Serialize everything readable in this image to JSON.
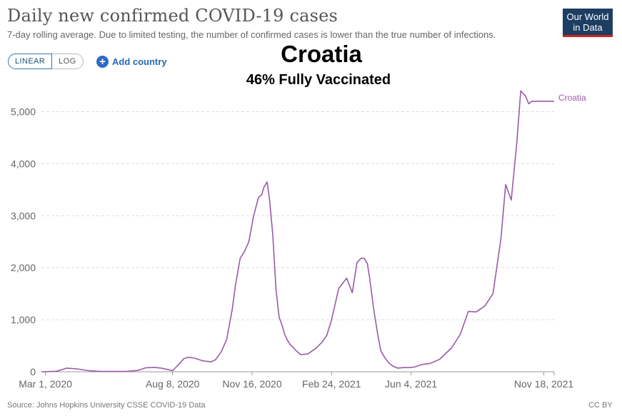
{
  "header": {
    "title": "Daily new confirmed COVID-19 cases",
    "subtitle": "7-day rolling average. Due to limited testing, the number of confirmed cases is lower than the true number of infections."
  },
  "logo": {
    "line1": "Our World",
    "line2": "in Data"
  },
  "controls": {
    "linear_label": "LINEAR",
    "log_label": "LOG",
    "add_country_label": "Add country",
    "add_icon": "plus-circle-icon"
  },
  "overlay": {
    "title": "Croatia",
    "subtitle": "46% Fully Vaccinated"
  },
  "footer": {
    "source": "Source: Johns Hopkins University CSSE COVID-19 Data",
    "license": "CC BY"
  },
  "colors": {
    "series": "#9a5aa8",
    "grid": "#dddddd",
    "logo_bg": "#1d3d63",
    "logo_accent": "#ce261e",
    "link": "#2668b5"
  },
  "chart_data": {
    "type": "line",
    "x_axis_type": "date",
    "ylim": [
      0,
      5500
    ],
    "y_ticks": [
      0,
      1000,
      2000,
      3000,
      4000,
      5000
    ],
    "y_tick_labels": [
      "0",
      "1,000",
      "2,000",
      "3,000",
      "4,000",
      "5,000"
    ],
    "x_ticks": [
      "2020-03-01",
      "2020-08-08",
      "2020-11-16",
      "2021-02-24",
      "2021-06-04",
      "2021-11-18"
    ],
    "x_tick_labels": [
      "Mar 1, 2020",
      "Aug 8, 2020",
      "Nov 16, 2020",
      "Feb 24, 2021",
      "Jun 4, 2021",
      "Nov 18, 2021"
    ],
    "x_range": [
      "2020-02-25",
      "2021-12-01"
    ],
    "grid": "horizontal-dashed",
    "series": [
      {
        "name": "Croatia",
        "x": [
          "2020-02-25",
          "2020-03-15",
          "2020-03-28",
          "2020-04-10",
          "2020-04-25",
          "2020-05-10",
          "2020-05-25",
          "2020-06-10",
          "2020-06-25",
          "2020-07-05",
          "2020-07-15",
          "2020-07-25",
          "2020-08-01",
          "2020-08-08",
          "2020-08-15",
          "2020-08-22",
          "2020-08-28",
          "2020-09-05",
          "2020-09-15",
          "2020-09-25",
          "2020-10-01",
          "2020-10-08",
          "2020-10-15",
          "2020-10-22",
          "2020-10-26",
          "2020-11-01",
          "2020-11-06",
          "2020-11-12",
          "2020-11-18",
          "2020-11-24",
          "2020-11-28",
          "2020-12-01",
          "2020-12-05",
          "2020-12-08",
          "2020-12-12",
          "2020-12-16",
          "2020-12-20",
          "2020-12-24",
          "2020-12-27",
          "2020-12-30",
          "2021-01-03",
          "2021-01-06",
          "2021-01-10",
          "2021-01-16",
          "2021-01-25",
          "2021-02-05",
          "2021-02-12",
          "2021-02-18",
          "2021-02-24",
          "2021-03-05",
          "2021-03-15",
          "2021-03-22",
          "2021-03-28",
          "2021-04-02",
          "2021-04-06",
          "2021-04-10",
          "2021-04-13",
          "2021-04-18",
          "2021-04-23",
          "2021-04-27",
          "2021-05-02",
          "2021-05-07",
          "2021-05-12",
          "2021-05-18",
          "2021-05-25",
          "2021-06-01",
          "2021-06-08",
          "2021-06-18",
          "2021-06-28",
          "2021-07-10",
          "2021-07-25",
          "2021-08-05",
          "2021-08-15",
          "2021-08-25",
          "2021-09-05",
          "2021-09-15",
          "2021-09-25",
          "2021-10-01",
          "2021-10-08",
          "2021-10-15",
          "2021-10-20",
          "2021-10-26",
          "2021-10-30",
          "2021-11-03",
          "2021-11-07",
          "2021-11-10",
          "2021-11-12",
          "2021-11-15",
          "2021-11-18",
          "2021-11-20",
          "2021-11-22",
          "2021-11-24",
          "2021-11-27",
          "2021-11-29",
          "2021-12-01"
        ],
        "values": [
          0,
          10,
          70,
          55,
          20,
          5,
          5,
          5,
          25,
          75,
          85,
          70,
          45,
          20,
          130,
          250,
          280,
          260,
          210,
          190,
          230,
          380,
          620,
          1200,
          1650,
          2180,
          2300,
          2500,
          3000,
          3350,
          3400,
          3550,
          3650,
          3300,
          2650,
          1600,
          1050,
          880,
          720,
          620,
          520,
          480,
          410,
          330,
          340,
          460,
          570,
          700,
          1000,
          1600,
          1800,
          1520,
          2100,
          2180,
          2180,
          2080,
          1800,
          1200,
          720,
          400,
          270,
          170,
          110,
          70,
          80,
          80,
          90,
          140,
          160,
          240,
          460,
          720,
          1160,
          1150,
          1270,
          1500,
          2550,
          3600,
          3300,
          4400,
          5400,
          5300,
          5150,
          5200,
          5200,
          5200,
          5200,
          5200,
          5200,
          5200,
          5200,
          5200,
          5200,
          5200,
          5200
        ]
      }
    ]
  }
}
